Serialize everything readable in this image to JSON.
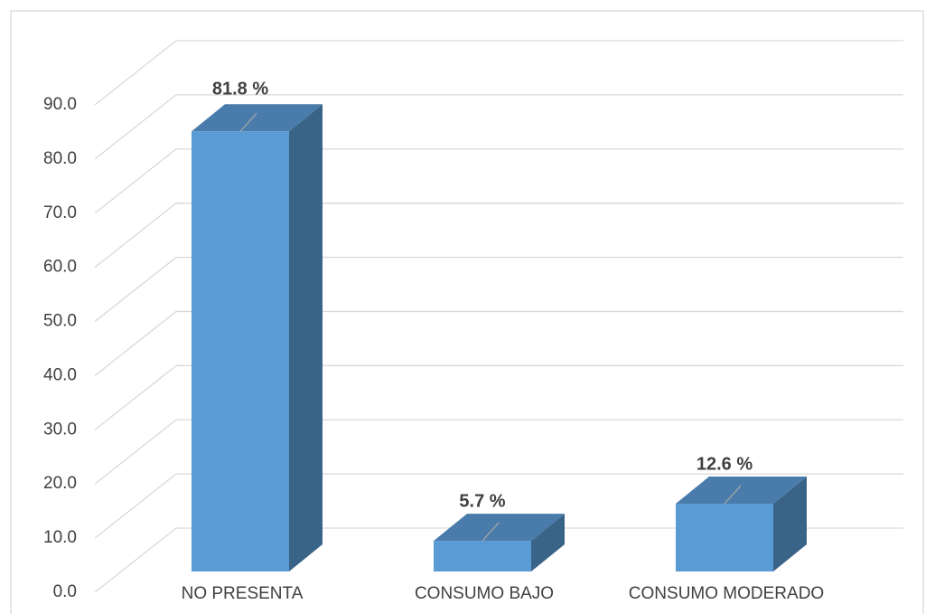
{
  "chart_data": {
    "type": "bar3d",
    "categories": [
      "NO PRESENTA",
      "CONSUMO BAJO",
      "CONSUMO MODERADO"
    ],
    "values": [
      81.8,
      5.7,
      12.6
    ],
    "value_labels": [
      "81.8 %",
      "5.7 %",
      "12.6 %"
    ],
    "color": "#5b9bd5",
    "ylim": [
      0,
      90
    ],
    "yticks": [
      {
        "value": 0,
        "label": "0.0"
      },
      {
        "value": 10,
        "label": "10.0"
      },
      {
        "value": 20,
        "label": "20.0"
      },
      {
        "value": 30,
        "label": "30.0"
      },
      {
        "value": 40,
        "label": "40.0"
      },
      {
        "value": 50,
        "label": "50.0"
      },
      {
        "value": 60,
        "label": "60.0"
      },
      {
        "value": 70,
        "label": "70.0"
      },
      {
        "value": 80,
        "label": "80.0"
      },
      {
        "value": 90,
        "label": "90.0"
      }
    ],
    "grid": true
  }
}
